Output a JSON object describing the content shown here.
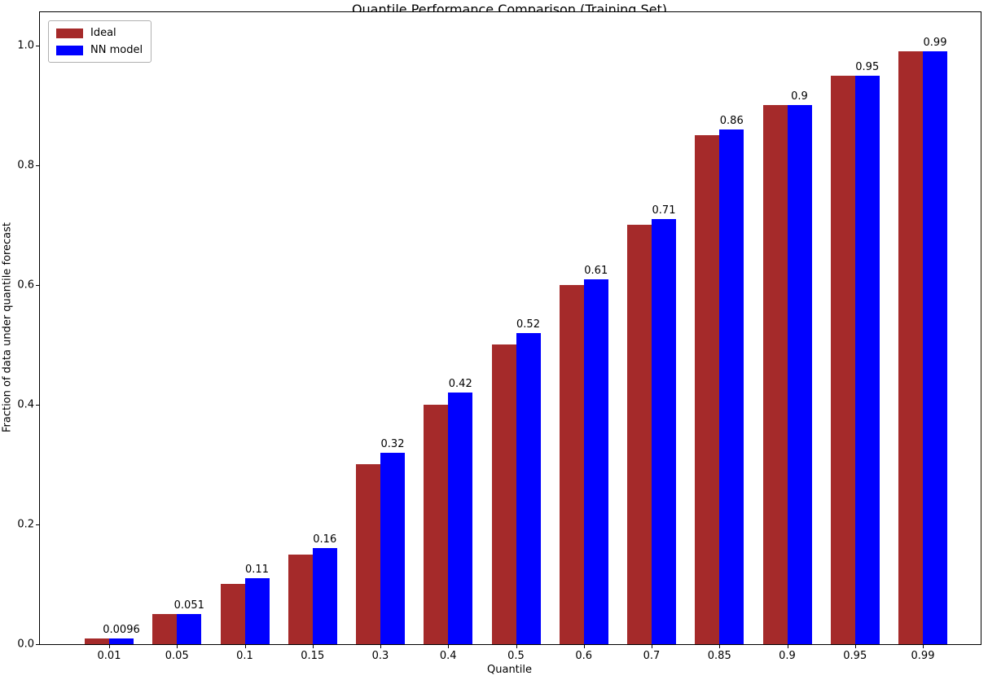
{
  "chart_data": {
    "type": "bar",
    "title": "Quantile Performance Comparison (Training Set)",
    "xlabel": "Quantile",
    "ylabel": "Fraction of data under quantile forecast",
    "categories": [
      "0.01",
      "0.05",
      "0.1",
      "0.15",
      "0.3",
      "0.4",
      "0.5",
      "0.6",
      "0.7",
      "0.85",
      "0.9",
      "0.95",
      "0.99"
    ],
    "series": [
      {
        "name": "Ideal",
        "color": "#A52A2A",
        "values": [
          0.01,
          0.05,
          0.1,
          0.15,
          0.3,
          0.4,
          0.5,
          0.6,
          0.7,
          0.85,
          0.9,
          0.95,
          0.99
        ]
      },
      {
        "name": "NN model",
        "color": "#0000FF",
        "values": [
          0.0096,
          0.051,
          0.11,
          0.16,
          0.32,
          0.42,
          0.52,
          0.61,
          0.71,
          0.86,
          0.9,
          0.95,
          0.99
        ],
        "bar_labels": [
          "0.0096",
          "0.051",
          "0.11",
          "0.16",
          "0.32",
          "0.42",
          "0.52",
          "0.61",
          "0.71",
          "0.86",
          "0.9",
          "0.95",
          "0.99"
        ]
      }
    ],
    "yticks": [
      "0.0",
      "0.2",
      "0.4",
      "0.6",
      "0.8",
      "1.0"
    ],
    "ylim": [
      0,
      1.056
    ],
    "grid": false,
    "legend_position": "upper left",
    "background_color": "#ffffff",
    "text_color": "#000000"
  }
}
